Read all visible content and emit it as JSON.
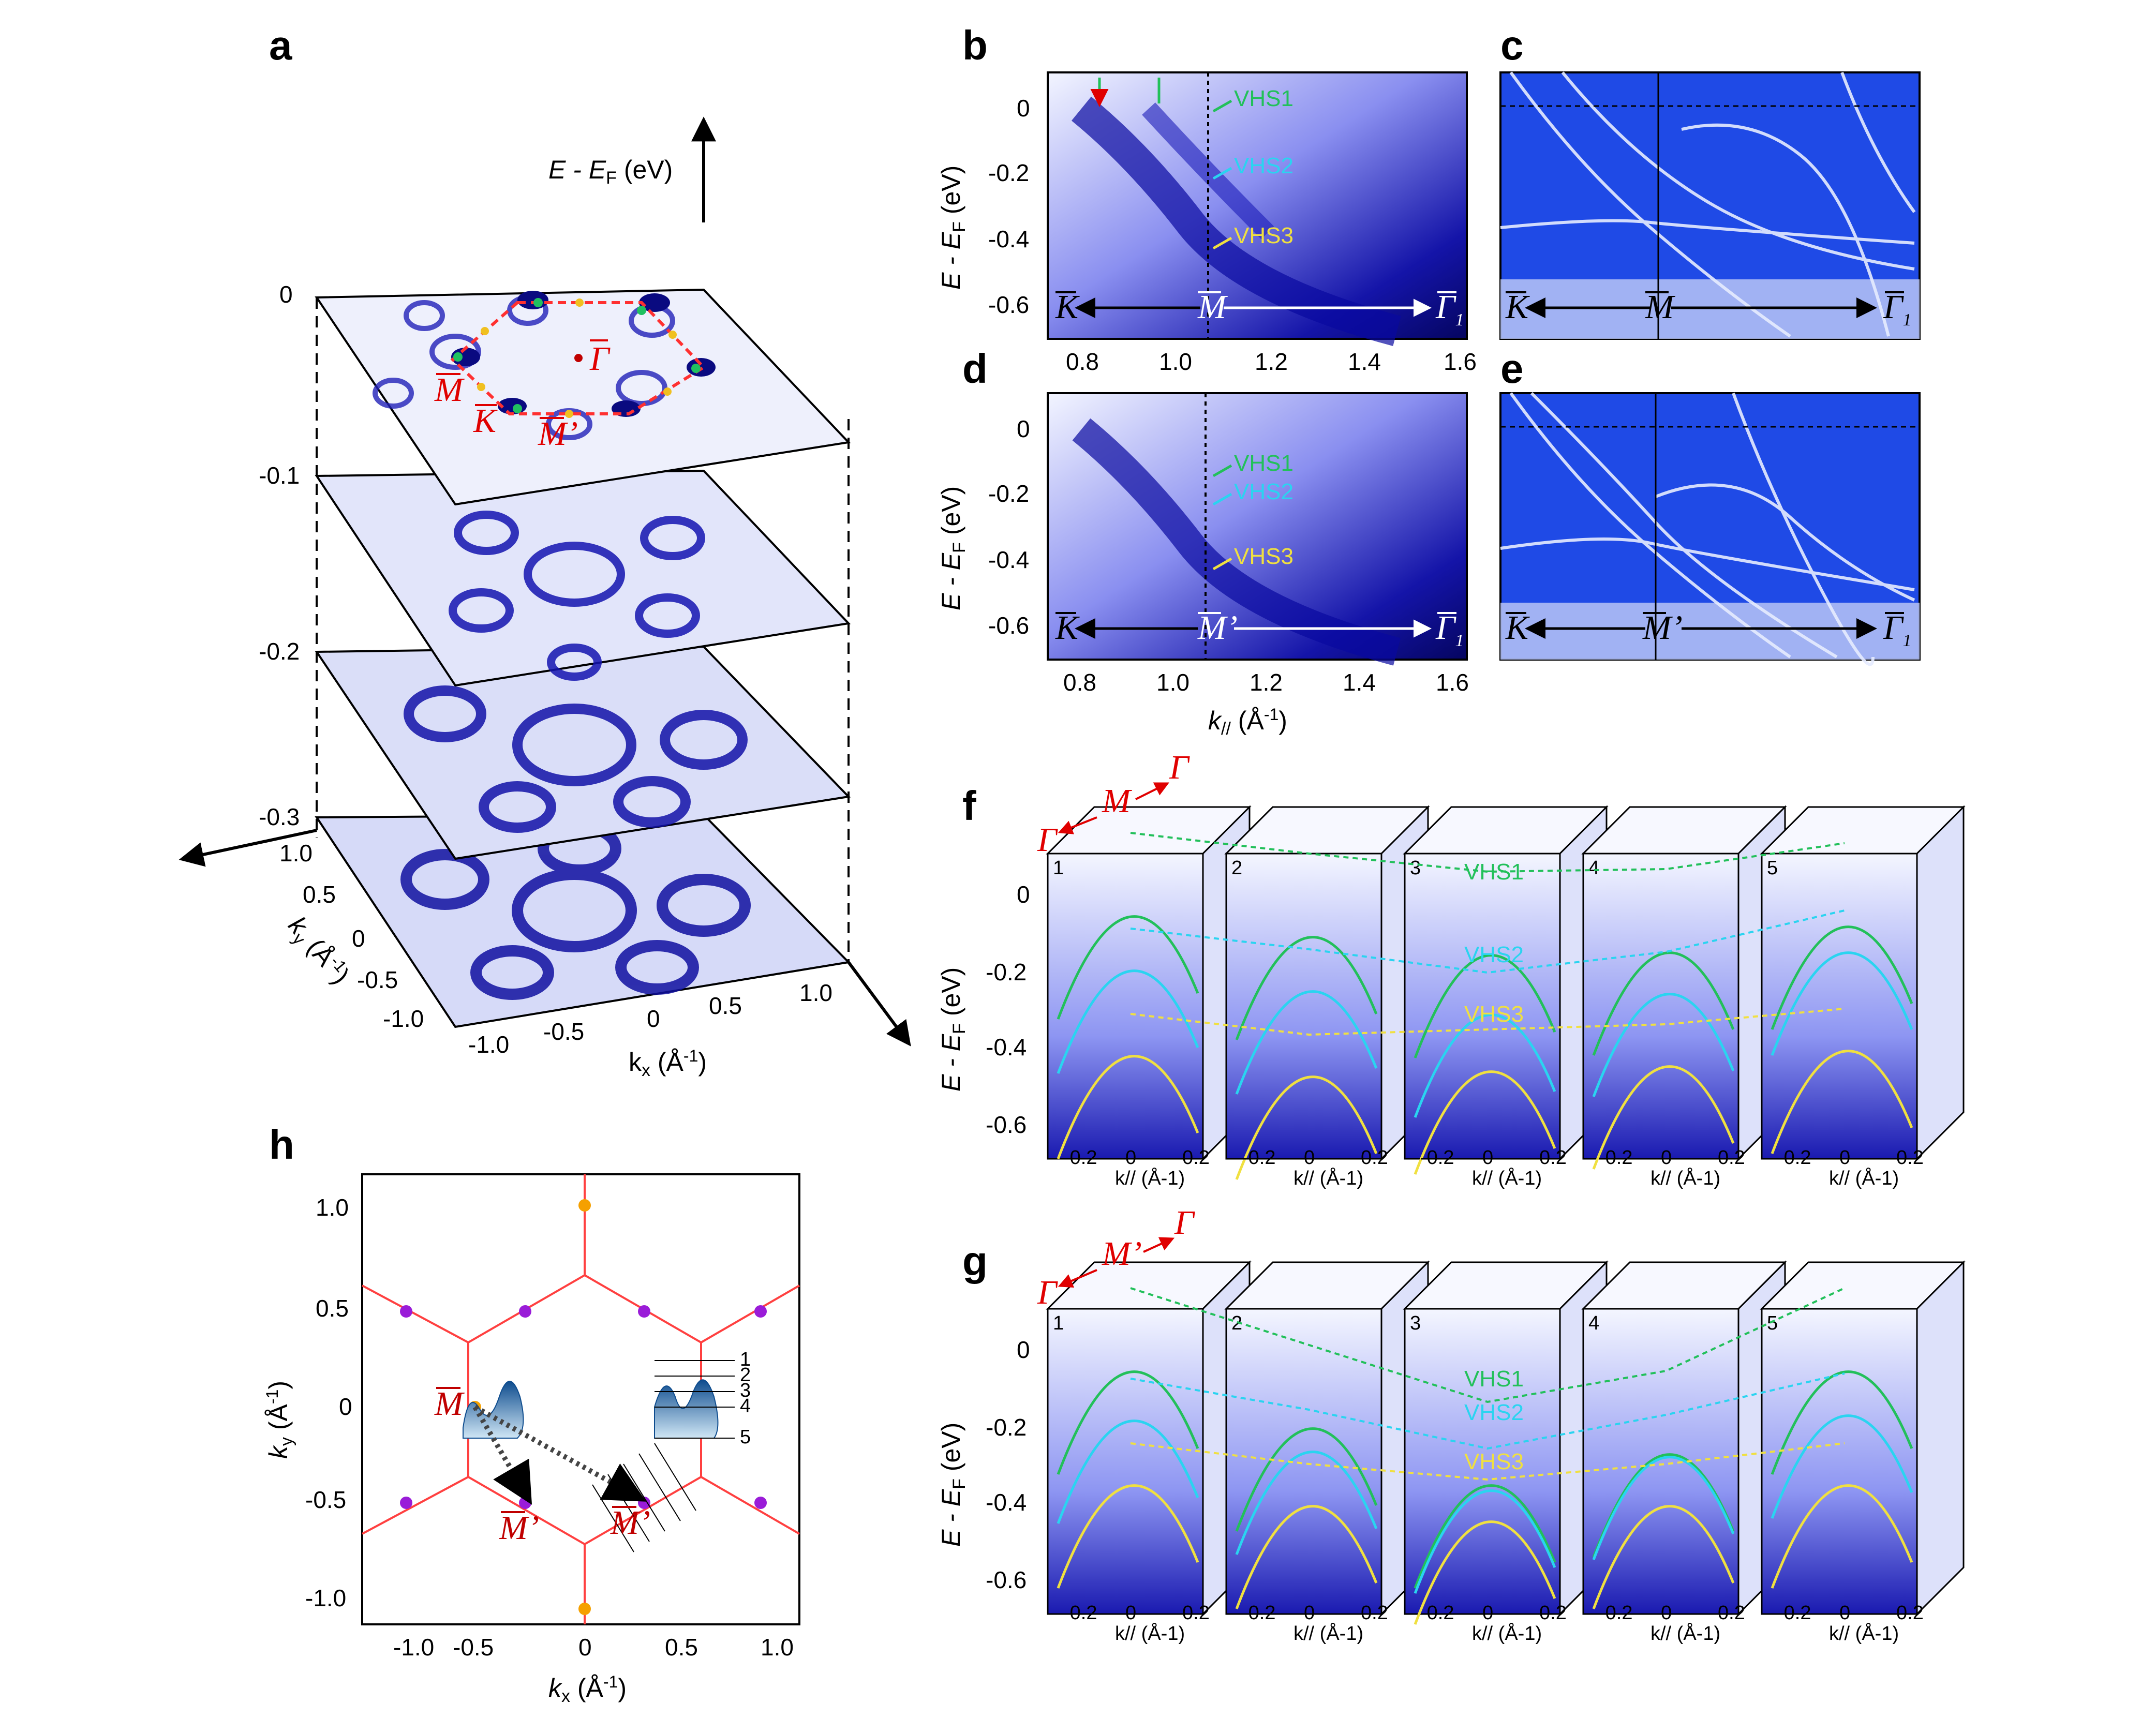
{
  "colors": {
    "arpes_deep": "#0a0a8a",
    "arpes_mid": "#3a3ad8",
    "arpes_light": "#e8ecff",
    "calc_bg": "#1f4ae6",
    "red": "#e00000",
    "vhs1": "#22c05a",
    "vhs2": "#2ad4f0",
    "vhs3": "#f0e040",
    "bz_line": "#ff4040",
    "bz_purple": "#9a1cd8",
    "bz_orange": "#f5a000"
  },
  "panel_labels": {
    "a": "a",
    "b": "b",
    "c": "c",
    "d": "d",
    "e": "e",
    "f": "f",
    "g": "g",
    "h": "h"
  },
  "panel_a": {
    "energy_axis_label": "E - E",
    "energy_axis_sub": "F",
    "energy_axis_unit": " (eV)",
    "layer_energies": [
      "0",
      "-0.1",
      "-0.2",
      "-0.3"
    ],
    "kx_label": "k",
    "kx_sub": "x",
    "kx_unit": " (Å",
    "ky_label": "k",
    "ky_sub": "y",
    "ky_unit": " (Å",
    "inv_exp": "-1",
    "close_paren": ")",
    "kx_ticks": [
      "-1.0",
      "-0.5",
      "0",
      "0.5",
      "1.0"
    ],
    "ky_ticks": [
      "1.0",
      "0.5",
      "0",
      "-0.5",
      "-1.0"
    ],
    "points": {
      "gamma": "Γ",
      "m": "M",
      "k": "K",
      "m_prime": "M’"
    }
  },
  "energy_ticks_bd": [
    "0",
    "-0.2",
    "-0.4",
    "-0.6"
  ],
  "energy_axis_bd": {
    "main": "E - E",
    "sub": "F",
    "unit": " (eV)"
  },
  "kpar_ticks_bd": [
    "0.8",
    "1.0",
    "1.2",
    "1.4",
    "1.6"
  ],
  "kpar_axis": {
    "main": "k",
    "sub": "//",
    "unit": " (Å",
    "exp": "-1",
    "close": ")"
  },
  "panel_b": {
    "vhs_labels": [
      "VHS1",
      "VHS2",
      "VHS3"
    ],
    "path": {
      "left": "K",
      "mid": "M",
      "right": "Γ",
      "right_sub": "1"
    }
  },
  "panel_c": {
    "path": {
      "left": "K",
      "mid": "M",
      "right": "Γ",
      "right_sub": "1"
    }
  },
  "panel_d": {
    "vhs_labels": [
      "VHS1",
      "VHS2",
      "VHS3"
    ],
    "path": {
      "left": "K",
      "mid": "M’",
      "right": "Γ",
      "right_sub": "1"
    }
  },
  "panel_e": {
    "path": {
      "left": "K",
      "mid": "M’",
      "right": "Γ",
      "right_sub": "1"
    }
  },
  "panel_f": {
    "cut_indices": [
      "1",
      "2",
      "3",
      "4",
      "5"
    ],
    "energy_ticks": [
      "0",
      "-0.2",
      "-0.4",
      "-0.6"
    ],
    "k_ticks": [
      "-0.2",
      "0",
      "0.2"
    ],
    "k_label": {
      "main": "k",
      "sub": "//",
      "unit": " (Å",
      "exp": "-1",
      "close": ")"
    },
    "vhs_labels": [
      "VHS1",
      "VHS2",
      "VHS3"
    ],
    "path": {
      "a": "Γ",
      "b": "M",
      "c": "Γ"
    }
  },
  "panel_g": {
    "cut_indices": [
      "1",
      "2",
      "3",
      "4",
      "5"
    ],
    "energy_ticks": [
      "0",
      "-0.2",
      "-0.4",
      "-0.6"
    ],
    "k_ticks": [
      "-0.2",
      "0",
      "0.2"
    ],
    "k_label": {
      "main": "k",
      "sub": "//",
      "unit": " (Å",
      "exp": "-1",
      "close": ")"
    },
    "vhs_labels": [
      "VHS1",
      "VHS2",
      "VHS3"
    ],
    "path": {
      "a": "Γ",
      "b": "M’",
      "c": "Γ"
    }
  },
  "panel_h": {
    "x_ticks": [
      "-1.0",
      "-0.5",
      "0",
      "0.5",
      "1.0"
    ],
    "y_ticks": [
      "1.0",
      "0.5",
      "0",
      "-0.5",
      "-1.0"
    ],
    "x_label": {
      "main": "k",
      "sub": "x",
      "unit": " (Å",
      "exp": "-1",
      "close": ")"
    },
    "y_label": {
      "main": "k",
      "sub": "y",
      "unit": " (Å",
      "exp": "-1",
      "close": ")"
    },
    "cut_numbers": [
      "1",
      "2",
      "3",
      "4",
      "5"
    ],
    "points": {
      "m": "M",
      "m_prime": "M’",
      "m_prime2": "M’"
    }
  }
}
